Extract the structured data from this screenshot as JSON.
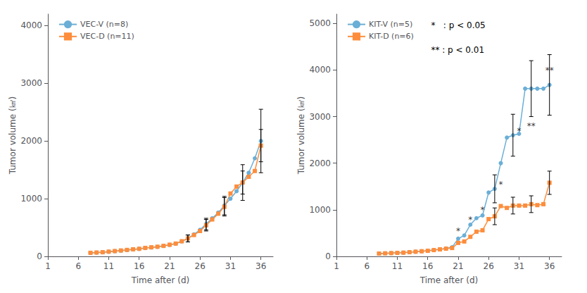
{
  "chart_data": [
    {
      "type": "line",
      "xlabel": "Time after (d)",
      "ylabel": "Tumor volume (㎦)",
      "x": [
        8,
        9,
        10,
        11,
        12,
        13,
        14,
        15,
        16,
        17,
        18,
        19,
        20,
        21,
        22,
        23,
        24,
        25,
        26,
        27,
        28,
        29,
        30,
        31,
        32,
        33,
        34,
        35,
        36
      ],
      "series": [
        {
          "name": "VEC-V (n=8)",
          "color": "#6baed6",
          "marker": "circle",
          "values": [
            60,
            65,
            70,
            80,
            90,
            100,
            110,
            120,
            130,
            145,
            155,
            165,
            180,
            200,
            220,
            260,
            310,
            380,
            460,
            560,
            660,
            760,
            880,
            1000,
            1130,
            1280,
            1450,
            1700,
            2000
          ],
          "errors": [
            null,
            null,
            null,
            null,
            null,
            null,
            null,
            null,
            null,
            null,
            null,
            null,
            null,
            null,
            null,
            null,
            60,
            null,
            null,
            100,
            null,
            null,
            160,
            null,
            null,
            310,
            null,
            null,
            550
          ]
        },
        {
          "name": "VEC-D (n=11)",
          "color": "#fd8d3c",
          "marker": "square",
          "values": [
            62,
            67,
            72,
            82,
            92,
            102,
            112,
            122,
            132,
            147,
            157,
            167,
            182,
            202,
            222,
            262,
            312,
            370,
            440,
            540,
            640,
            740,
            860,
            1090,
            1210,
            1280,
            1380,
            1480,
            1920
          ],
          "errors": [
            null,
            null,
            null,
            null,
            null,
            null,
            null,
            null,
            null,
            null,
            null,
            null,
            null,
            null,
            null,
            null,
            60,
            null,
            null,
            100,
            null,
            null,
            160,
            null,
            null,
            200,
            null,
            null,
            280
          ]
        }
      ],
      "xlim": [
        1,
        38
      ],
      "xticks": [
        1,
        6,
        11,
        16,
        21,
        26,
        31,
        36
      ],
      "ylim": [
        0,
        4200
      ],
      "yticks": [
        0,
        1000,
        2000,
        3000,
        4000
      ],
      "legend": "upper left",
      "grid": false
    },
    {
      "type": "line",
      "xlabel": "Time after (d)",
      "ylabel": "Tumor volume (㎦)",
      "x": [
        8,
        9,
        10,
        11,
        12,
        13,
        14,
        15,
        16,
        17,
        18,
        19,
        20,
        21,
        22,
        23,
        24,
        25,
        26,
        27,
        28,
        29,
        30,
        31,
        32,
        33,
        34,
        35,
        36
      ],
      "series": [
        {
          "name": "KIT-V (n=5)",
          "color": "#6baed6",
          "marker": "circle",
          "values": [
            60,
            65,
            70,
            75,
            80,
            90,
            100,
            110,
            120,
            135,
            150,
            170,
            195,
            380,
            450,
            680,
            820,
            880,
            1370,
            1450,
            2000,
            2550,
            2600,
            2630,
            3600,
            3600,
            3600,
            3600,
            3680
          ],
          "errors": [
            null,
            null,
            null,
            null,
            null,
            null,
            null,
            null,
            null,
            null,
            null,
            null,
            null,
            null,
            null,
            null,
            null,
            null,
            null,
            300,
            null,
            null,
            450,
            null,
            null,
            600,
            null,
            null,
            650
          ]
        },
        {
          "name": "KIT-D (n=6)",
          "color": "#fd8d3c",
          "marker": "square",
          "values": [
            60,
            65,
            70,
            75,
            80,
            90,
            100,
            110,
            120,
            135,
            150,
            165,
            180,
            290,
            320,
            420,
            530,
            560,
            800,
            860,
            1080,
            1040,
            1090,
            1090,
            1090,
            1120,
            1100,
            1120,
            1580
          ],
          "errors": [
            null,
            null,
            null,
            null,
            null,
            null,
            null,
            null,
            null,
            null,
            null,
            null,
            null,
            null,
            null,
            null,
            null,
            null,
            null,
            180,
            null,
            null,
            180,
            null,
            null,
            180,
            null,
            null,
            250
          ]
        }
      ],
      "annotations": [
        {
          "x": 21,
          "y": 460,
          "text": "*"
        },
        {
          "x": 23,
          "y": 700,
          "text": "*"
        },
        {
          "x": 25,
          "y": 900,
          "text": "*"
        },
        {
          "x": 28,
          "y": 1450,
          "text": "*"
        },
        {
          "x": 31,
          "y": 2600,
          "text": "*"
        },
        {
          "x": 33,
          "y": 2700,
          "text": "**"
        },
        {
          "x": 36,
          "y": 3900,
          "text": "**"
        },
        {
          "text": "*   : p < 0.05"
        },
        {
          "text": "** : p < 0.01"
        }
      ],
      "xlim": [
        1,
        38
      ],
      "xticks": [
        1,
        6,
        11,
        16,
        21,
        26,
        31,
        36
      ],
      "ylim": [
        0,
        5200
      ],
      "yticks": [
        0,
        1000,
        2000,
        3000,
        4000,
        5000
      ],
      "legend": "upper left",
      "grid": false
    }
  ]
}
